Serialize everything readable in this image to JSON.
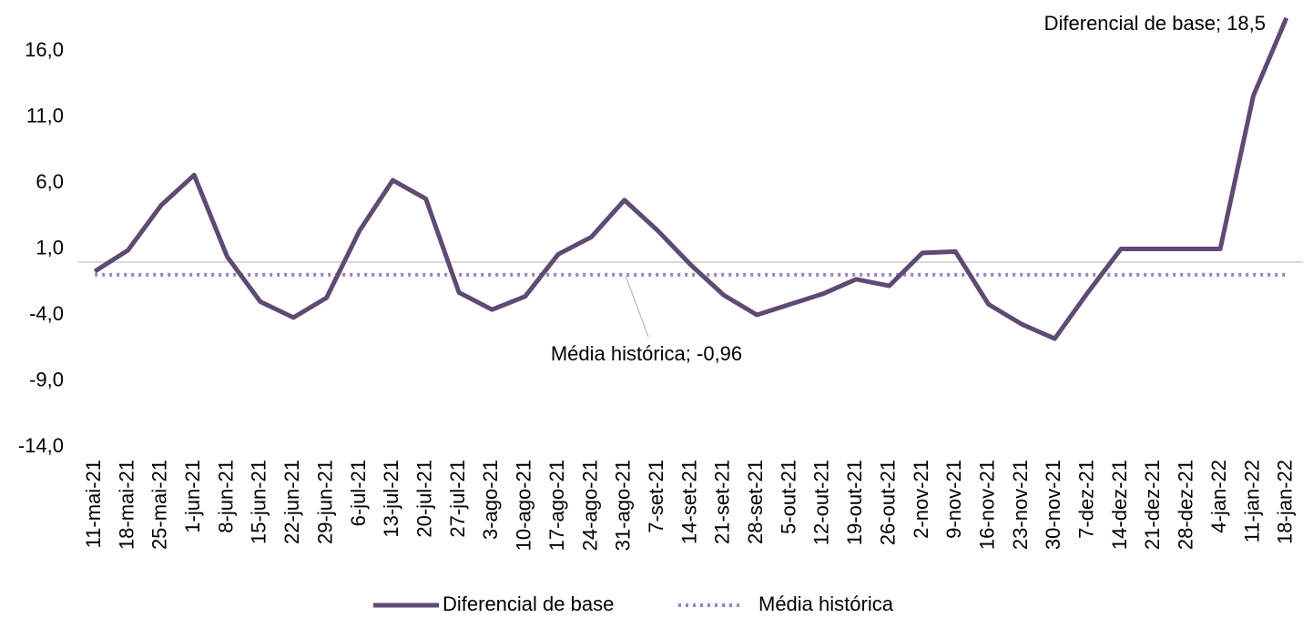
{
  "chart_data": {
    "type": "line",
    "categories": [
      "11-mai-21",
      "18-mai-21",
      "25-mai-21",
      "1-jun-21",
      "8-jun-21",
      "15-jun-21",
      "22-jun-21",
      "29-jun-21",
      "6-jul-21",
      "13-jul-21",
      "20-jul-21",
      "27-jul-21",
      "3-ago-21",
      "10-ago-21",
      "17-ago-21",
      "24-ago-21",
      "31-ago-21",
      "7-set-21",
      "14-set-21",
      "21-set-21",
      "28-set-21",
      "5-out-21",
      "12-out-21",
      "19-out-21",
      "26-out-21",
      "2-nov-21",
      "9-nov-21",
      "16-nov-21",
      "23-nov-21",
      "30-nov-21",
      "7-dez-21",
      "14-dez-21",
      "21-dez-21",
      "28-dez-21",
      "4-jan-22",
      "11-jan-22",
      "18-jan-22"
    ],
    "series": [
      {
        "name": "Diferencial de base",
        "color": "#5e4a72",
        "style": "solid",
        "values": [
          -0.7,
          0.9,
          4.3,
          6.6,
          0.4,
          -3.0,
          -4.2,
          -2.7,
          2.4,
          6.2,
          4.8,
          -2.3,
          -3.6,
          -2.6,
          0.6,
          1.9,
          4.7,
          2.4,
          -0.2,
          -2.5,
          -4.0,
          -3.2,
          -2.4,
          -1.3,
          -1.8,
          0.7,
          0.8,
          -3.2,
          -4.7,
          -5.8,
          -2.3,
          1.0,
          1.0,
          1.0,
          1.0,
          12.6,
          18.5
        ]
      },
      {
        "name": "Média histórica",
        "color": "#9d80c2",
        "style": "dotted",
        "values": [
          -0.96,
          -0.96,
          -0.96,
          -0.96,
          -0.96,
          -0.96,
          -0.96,
          -0.96,
          -0.96,
          -0.96,
          -0.96,
          -0.96,
          -0.96,
          -0.96,
          -0.96,
          -0.96,
          -0.96,
          -0.96,
          -0.96,
          -0.96,
          -0.96,
          -0.96,
          -0.96,
          -0.96,
          -0.96,
          -0.96,
          -0.96,
          -0.96,
          -0.96,
          -0.96,
          -0.96,
          -0.96,
          -0.96,
          -0.96,
          -0.96,
          -0.96,
          -0.96
        ]
      }
    ],
    "annotations": [
      "Diferencial de base; 18,5",
      "Média histórica; -0,96"
    ],
    "ylim": [
      -14,
      19
    ],
    "yticks": [
      {
        "value": -14,
        "label": "-14,0"
      },
      {
        "value": -9,
        "label": "-9,0"
      },
      {
        "value": -4,
        "label": "-4,0"
      },
      {
        "value": 1,
        "label": "1,0"
      },
      {
        "value": 6,
        "label": "6,0"
      },
      {
        "value": 11,
        "label": "11,0"
      },
      {
        "value": 16,
        "label": "16,0"
      }
    ],
    "grid": false,
    "legend": "bottom"
  }
}
